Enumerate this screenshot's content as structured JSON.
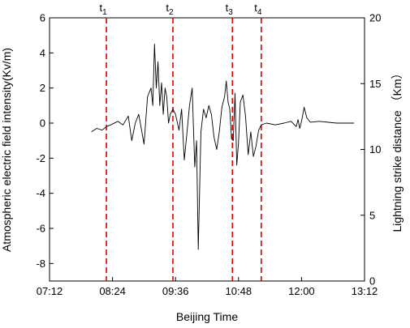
{
  "chart_data": {
    "type": "line",
    "xlabel": "Beijing Time",
    "ylabel_left": "Atmospheric electric field intensity(Kv/m)",
    "ylabel_right": "Lightning strike distance （Km）",
    "x_ticks": [
      "07:12",
      "08:24",
      "09:36",
      "10:48",
      "12:00",
      "13:12"
    ],
    "xlim": [
      "07:12",
      "13:12"
    ],
    "y_left_ticks": [
      "-8",
      "-6",
      "-4",
      "-2",
      "0",
      "2",
      "4",
      "6"
    ],
    "ylim_left": [
      -9,
      6
    ],
    "y_right_ticks": [
      "0",
      "5",
      "10",
      "15",
      "20"
    ],
    "ylim_right": [
      0,
      20
    ],
    "vertical_lines": [
      {
        "label": "t",
        "sub": "1",
        "x": "08:17"
      },
      {
        "label": "t",
        "sub": "2",
        "x": "09:33"
      },
      {
        "label": "t",
        "sub": "3",
        "x": "10:41"
      },
      {
        "label": "t",
        "sub": "4",
        "x": "11:14"
      }
    ],
    "vertical_line_color": "#e00000",
    "series": [
      {
        "color": "#000000",
        "axis": "left",
        "x": [
          "08:00",
          "08:06",
          "08:12",
          "08:17",
          "08:22",
          "08:30",
          "08:36",
          "08:42",
          "08:46",
          "08:50",
          "08:54",
          "09:00",
          "09:04",
          "09:08",
          "09:10",
          "09:12",
          "09:14",
          "09:16",
          "09:18",
          "09:20",
          "09:22",
          "09:24",
          "09:26",
          "09:28",
          "09:30",
          "09:33",
          "09:36",
          "09:40",
          "09:43",
          "09:46",
          "09:49",
          "09:52",
          "09:55",
          "09:58",
          "10:00",
          "10:02",
          "10:05",
          "10:08",
          "10:11",
          "10:14",
          "10:17",
          "10:20",
          "10:23",
          "10:26",
          "10:29",
          "10:32",
          "10:34",
          "10:36",
          "10:38",
          "10:40",
          "10:42",
          "10:44",
          "10:46",
          "10:48",
          "10:50",
          "10:53",
          "10:56",
          "10:59",
          "11:02",
          "11:05",
          "11:08",
          "11:11",
          "11:14",
          "11:20",
          "11:30",
          "11:40",
          "11:48",
          "11:54",
          "11:56",
          "11:58",
          "12:00",
          "12:03",
          "12:06",
          "12:10",
          "12:20",
          "12:40",
          "13:00"
        ],
        "values": [
          -0.5,
          -0.3,
          -0.4,
          -0.2,
          -0.1,
          0.1,
          -0.1,
          0.4,
          -1.0,
          0.0,
          0.5,
          -1.2,
          1.5,
          2.0,
          1.0,
          4.5,
          2.0,
          3.5,
          1.0,
          2.3,
          0.5,
          2.0,
          1.5,
          0.0,
          0.5,
          0.8,
          0.5,
          -0.4,
          0.8,
          -2.1,
          -0.6,
          1.0,
          2.0,
          -2.5,
          -1.0,
          -7.2,
          -0.5,
          0.8,
          0.3,
          1.0,
          0.5,
          -0.8,
          -1.5,
          -0.5,
          0.9,
          1.5,
          2.4,
          1.2,
          0.8,
          -0.9,
          -1.0,
          1.7,
          -2.4,
          -1.1,
          1.2,
          1.6,
          0.4,
          -1.8,
          -0.5,
          -1.9,
          -1.3,
          -0.4,
          -0.1,
          0.0,
          -0.1,
          0.0,
          0.1,
          -0.2,
          0.2,
          -0.3,
          0.1,
          0.9,
          0.3,
          0.05,
          0.1,
          0.0,
          0.0
        ]
      }
    ]
  }
}
